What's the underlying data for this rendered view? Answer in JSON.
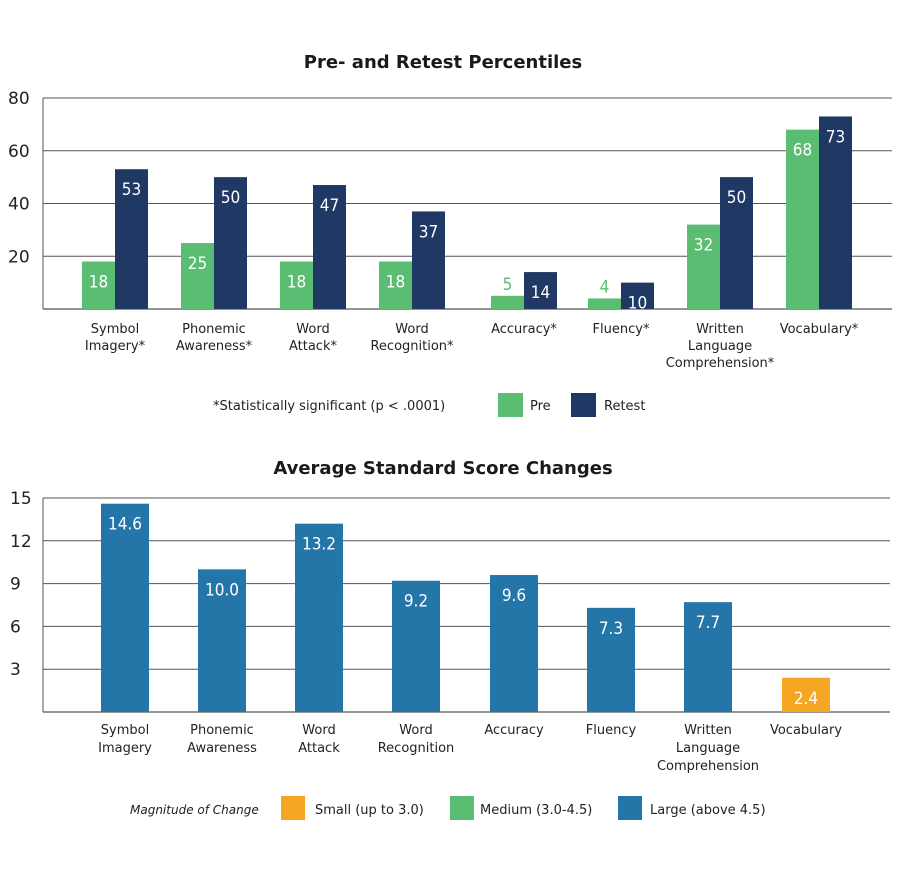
{
  "colors": {
    "pre": "#5bbd72",
    "retest": "#1f3864",
    "small": "#f5a623",
    "medium": "#5bbd72",
    "large": "#2475a8",
    "grid": "#555555"
  },
  "chart_data": [
    {
      "type": "bar",
      "title": "Pre- and Retest Percentiles",
      "categories": [
        [
          "Symbol",
          "Imagery*"
        ],
        [
          "Phonemic",
          "Awareness*"
        ],
        [
          "Word",
          "Attack*"
        ],
        [
          "Word",
          "Recognition*"
        ],
        [
          "Accuracy*"
        ],
        [
          "Fluency*"
        ],
        [
          "Written",
          "Language",
          "Comprehension*"
        ],
        [
          "Vocabulary*"
        ]
      ],
      "series": [
        {
          "name": "Pre",
          "values": [
            18,
            25,
            18,
            18,
            5,
            4,
            32,
            68
          ]
        },
        {
          "name": "Retest",
          "values": [
            53,
            50,
            47,
            37,
            14,
            10,
            50,
            73
          ]
        }
      ],
      "yticks": [
        "20",
        "40",
        "60",
        "80"
      ],
      "ylim": [
        0,
        80
      ],
      "grid": true,
      "footnote": "*Statistically significant (p < .0001)",
      "legend": [
        "Pre",
        "Retest"
      ]
    },
    {
      "type": "bar",
      "title": "Average Standard Score Changes",
      "categories": [
        [
          "Symbol",
          "Imagery"
        ],
        [
          "Phonemic",
          "Awareness"
        ],
        [
          "Word",
          "Attack"
        ],
        [
          "Word",
          "Recognition"
        ],
        [
          "Accuracy"
        ],
        [
          "Fluency"
        ],
        [
          "Written",
          "Language",
          "Comprehension"
        ],
        [
          "Vocabulary"
        ]
      ],
      "values": [
        14.6,
        10.0,
        13.2,
        9.2,
        9.6,
        7.3,
        7.7,
        2.4
      ],
      "labels": [
        "14.6",
        "10.0",
        "13.2",
        "9.2",
        "9.6",
        "7.3",
        "7.7",
        "2.4"
      ],
      "magnitude": [
        "large",
        "large",
        "large",
        "large",
        "large",
        "large",
        "large",
        "small"
      ],
      "yticks": [
        "3",
        "6",
        "9",
        "12",
        "15"
      ],
      "ylim": [
        0,
        15
      ],
      "grid": true,
      "legend_title": "Magnitude of Change",
      "legend": [
        {
          "key": "small",
          "label": "Small (up to 3.0)"
        },
        {
          "key": "medium",
          "label": "Medium (3.0-4.5)"
        },
        {
          "key": "large",
          "label": "Large (above 4.5)"
        }
      ]
    }
  ]
}
